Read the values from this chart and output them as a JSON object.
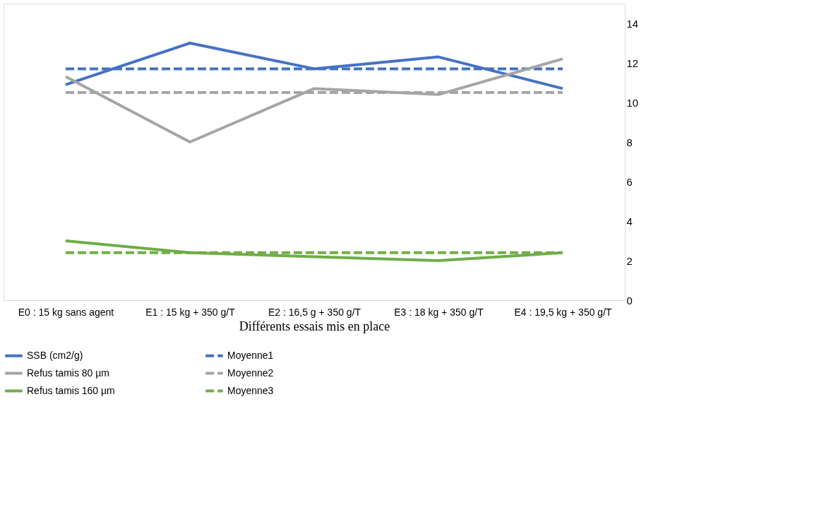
{
  "chart_data": {
    "type": "line",
    "xlabel": "Différents essais mis en place",
    "categories": [
      "E0 : 15 kg sans agent",
      "E1 : 15 kg + 350 g/T",
      "E2 : 16,5 g + 350 g/T",
      "E3 : 18 kg + 350 g/T",
      "E4 : 19,5 kg + 350 g/T"
    ],
    "series": [
      {
        "name": "SSB (cm2/g)",
        "color": "#4472c4",
        "line_style": "solid",
        "values": [
          10.9,
          13.0,
          11.7,
          12.3,
          10.7
        ]
      },
      {
        "name": "Moyenne1",
        "color": "#4472c4",
        "line_style": "dashed",
        "values": [
          11.7,
          11.7,
          11.7,
          11.7,
          11.7
        ]
      },
      {
        "name": "Refus tamis 80 µm",
        "color": "#a5a5a5",
        "line_style": "solid",
        "values": [
          11.3,
          8.0,
          10.7,
          10.4,
          12.2
        ]
      },
      {
        "name": "Moyenne2",
        "color": "#a5a5a5",
        "line_style": "dashed",
        "values": [
          10.5,
          10.5,
          10.5,
          10.5,
          10.5
        ]
      },
      {
        "name": "Refus tamis 160 µm",
        "color": "#70ad47",
        "line_style": "solid",
        "values": [
          3.0,
          2.4,
          2.2,
          2.0,
          2.4
        ]
      },
      {
        "name": "Moyenne3",
        "color": "#70ad47",
        "line_style": "dashed",
        "values": [
          2.4,
          2.4,
          2.4,
          2.4,
          2.4
        ]
      }
    ],
    "ylim": [
      0,
      15
    ],
    "yticks": [
      0,
      2,
      4,
      6,
      8,
      10,
      12,
      14
    ],
    "grid": false,
    "legend": "bottom",
    "marker": "none"
  }
}
